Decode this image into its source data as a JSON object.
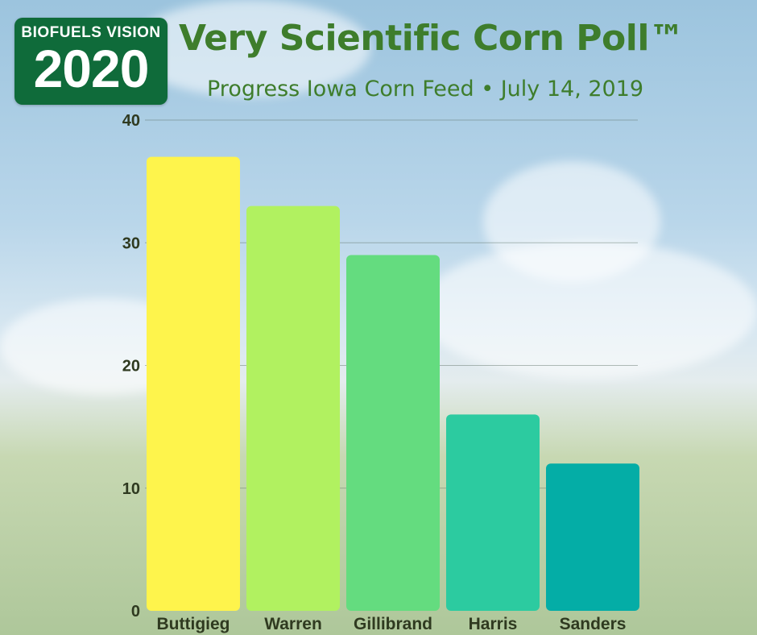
{
  "logo": {
    "top_text": "BIOFUELS VISION",
    "year_text": "2020"
  },
  "header": {
    "title": "Very Scientific Corn Poll™",
    "subtitle": "Progress Iowa Corn Feed • July 14, 2019"
  },
  "colors": {
    "title": "#3e7d2c",
    "bars": [
      "#fef44c",
      "#b1f160",
      "#64dc7f",
      "#2ccba0",
      "#04ada6"
    ]
  },
  "chart_data": {
    "type": "bar",
    "categories": [
      "Buttigieg",
      "Warren",
      "Gillibrand",
      "Harris",
      "Sanders"
    ],
    "values": [
      37,
      33,
      29,
      16,
      12
    ],
    "title": "Very Scientific Corn Poll™",
    "xlabel": "",
    "ylabel": "",
    "ylim": [
      0,
      40
    ],
    "yticks": [
      0,
      10,
      20,
      30,
      40
    ],
    "grid": true,
    "legend": "none"
  }
}
